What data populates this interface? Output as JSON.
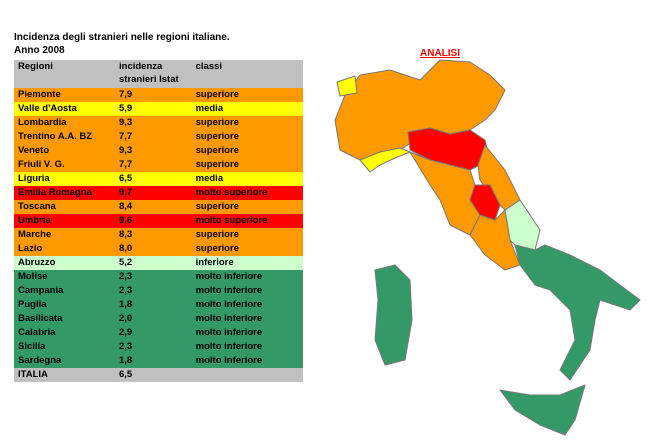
{
  "header": {
    "title": "Incidenza degli stranieri nelle regioni italiane.",
    "subtitle": "Anno 2008"
  },
  "table": {
    "columns": [
      "Regioni",
      "incidenza stranieri Istat",
      "classi"
    ],
    "header_color": "#c0c0c0",
    "rows": [
      {
        "region": "Piemonte",
        "value": "7,9",
        "class": "superiore",
        "color": "#ff9900"
      },
      {
        "region": "Valle d'Aosta",
        "value": "5,9",
        "class": "media",
        "color": "#ffff00"
      },
      {
        "region": "Lombardia",
        "value": "9,3",
        "class": "superiore",
        "color": "#ff9900"
      },
      {
        "region": "Trentino A.A. BZ",
        "value": "7,7",
        "class": "superiore",
        "color": "#ff9900"
      },
      {
        "region": "Veneto",
        "value": "9,3",
        "class": "superiore",
        "color": "#ff9900"
      },
      {
        "region": "Friuli V. G.",
        "value": "7,7",
        "class": "superiore",
        "color": "#ff9900"
      },
      {
        "region": "Liguria",
        "value": "6,5",
        "class": "media",
        "color": "#ffff00"
      },
      {
        "region": "Emilia Romagna",
        "value": "9,7",
        "class": "molto superiore",
        "color": "#ff0000"
      },
      {
        "region": "Toscana",
        "value": "8,4",
        "class": "superiore",
        "color": "#ff9900"
      },
      {
        "region": "Umbria",
        "value": "9,6",
        "class": "molto superiore",
        "color": "#ff0000"
      },
      {
        "region": "Marche",
        "value": "8,3",
        "class": "superiore",
        "color": "#ff9900"
      },
      {
        "region": "Lazio",
        "value": "8,0",
        "class": "superiore",
        "color": "#ff9900"
      },
      {
        "region": "Abruzzo",
        "value": "5,2",
        "class": "inferiore",
        "color": "#ccffcc"
      },
      {
        "region": "Molise",
        "value": "2,3",
        "class": "molto inferiore",
        "color": "#339966"
      },
      {
        "region": "Campania",
        "value": "2,3",
        "class": "molto inferiore",
        "color": "#339966"
      },
      {
        "region": "Puglia",
        "value": "1,8",
        "class": "molto inferiore",
        "color": "#339966"
      },
      {
        "region": "Basilicata",
        "value": "2,0",
        "class": "molto inferiore",
        "color": "#339966"
      },
      {
        "region": "Calabria",
        "value": "2,9",
        "class": "molto inferiore",
        "color": "#339966"
      },
      {
        "region": "Sicilia",
        "value": "2,3",
        "class": "molto inferiore",
        "color": "#339966"
      },
      {
        "region": "Sardegna",
        "value": "1,8",
        "class": "molto inferiore",
        "color": "#339966"
      }
    ],
    "total": {
      "region": "ITALIA",
      "value": "6,5"
    }
  },
  "map": {
    "label": "ANALISI"
  }
}
